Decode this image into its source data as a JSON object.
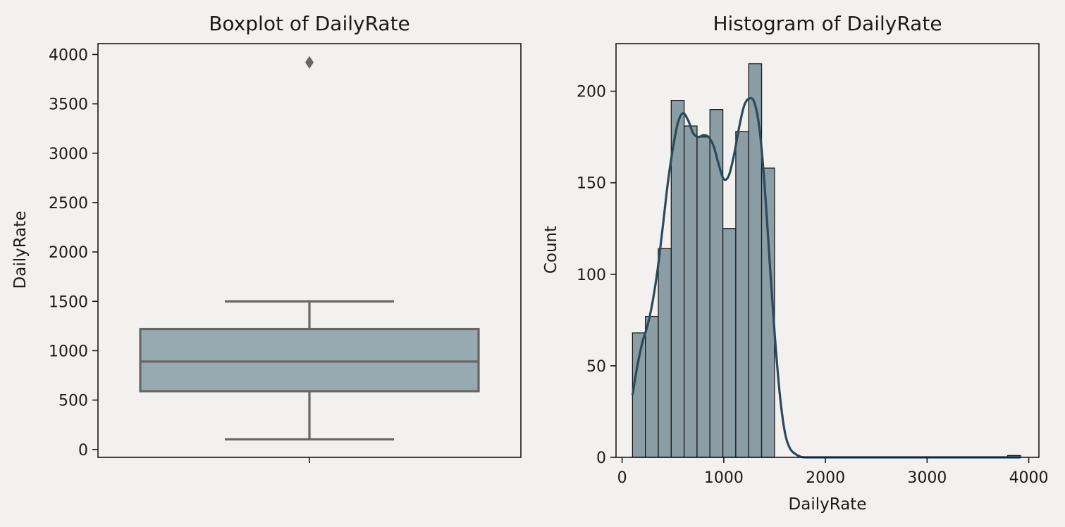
{
  "colors": {
    "background": "#f3f1ef",
    "box_fill": "#97aab2",
    "box_line": "#666666",
    "bar_fill": "#8b9da5",
    "bar_edge": "#1a1a1a",
    "kde_line": "#2b4a5a",
    "axis": "#1a1a1a"
  },
  "chart_data": [
    {
      "type": "box",
      "title": "Boxplot of DailyRate",
      "xlabel": "",
      "ylabel": "DailyRate",
      "ylim": [
        -80,
        4110
      ],
      "yticks": [
        0,
        500,
        1000,
        1500,
        2000,
        2500,
        3000,
        3500,
        4000
      ],
      "ytick_labels": [
        "0",
        "500",
        "1000",
        "1500",
        "2000",
        "2500",
        "3000",
        "3500",
        "4000"
      ],
      "box": {
        "whisker_low": 102,
        "q1": 590,
        "median": 890,
        "q3": 1220,
        "whisker_high": 1499,
        "outliers": [
          3920
        ]
      },
      "grid": false
    },
    {
      "type": "histogram",
      "title": "Histogram of DailyRate",
      "xlabel": "DailyRate",
      "ylabel": "Count",
      "xlim": [
        -60,
        4100
      ],
      "ylim": [
        0,
        226
      ],
      "xticks": [
        0,
        1000,
        2000,
        3000,
        4000
      ],
      "xtick_labels": [
        "0",
        "1000",
        "2000",
        "3000",
        "4000"
      ],
      "yticks": [
        0,
        50,
        100,
        150,
        200
      ],
      "ytick_labels": [
        "0",
        "50",
        "100",
        "150",
        "200"
      ],
      "bin_edges": [
        102,
        229,
        356,
        483,
        610,
        737,
        864,
        991,
        1118,
        1245,
        1372,
        1499,
        3792,
        3920
      ],
      "counts": [
        68,
        77,
        114,
        195,
        181,
        175,
        190,
        125,
        178,
        215,
        158,
        0,
        1
      ],
      "kde": {
        "x": [
          102,
          150,
          200,
          250,
          300,
          350,
          400,
          450,
          500,
          550,
          600,
          650,
          700,
          750,
          800,
          850,
          900,
          950,
          1000,
          1050,
          1100,
          1150,
          1200,
          1250,
          1300,
          1350,
          1400,
          1450,
          1500,
          1550,
          1600,
          1650,
          1700,
          1750,
          1800,
          2000,
          2500,
          3000,
          3500,
          3920
        ],
        "y": [
          34,
          50,
          63,
          72,
          85,
          103,
          126,
          150,
          169,
          183,
          188,
          184,
          177,
          175,
          176,
          175,
          170,
          160,
          152,
          154,
          165,
          180,
          192,
          196,
          194,
          180,
          150,
          108,
          68,
          35,
          14,
          5,
          2,
          0.5,
          0,
          0,
          0,
          0,
          0,
          0
        ]
      },
      "grid": false
    }
  ]
}
